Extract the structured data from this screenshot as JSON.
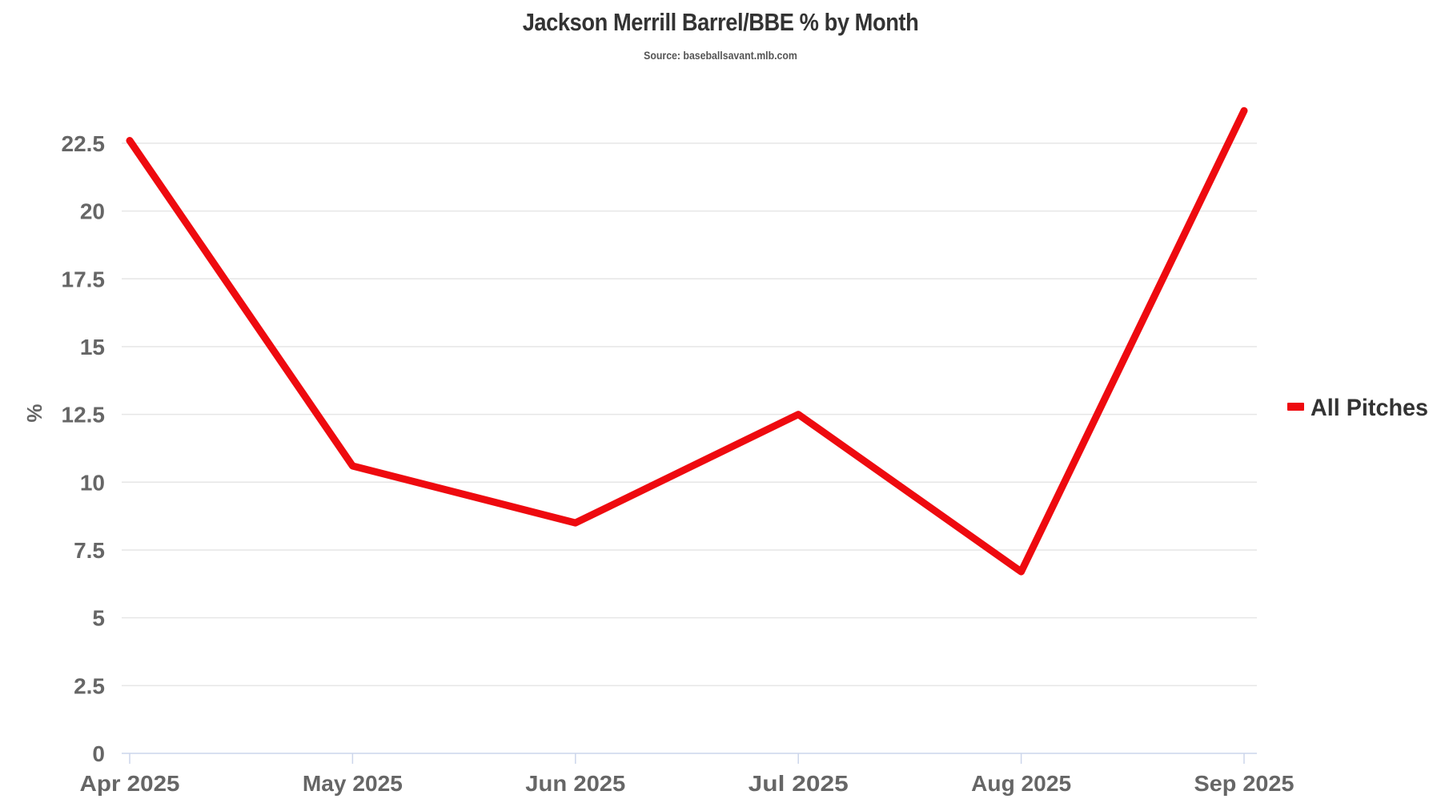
{
  "header": {
    "title": "Jackson Merrill Barrel/BBE % by Month",
    "subtitle": "Source: baseballsavant.mlb.com"
  },
  "colors": {
    "series": "#EE0A0F",
    "gridline": "#E6E6E6",
    "axis": "#CCD6EB",
    "tick_text": "#666666",
    "title_text": "#333333"
  },
  "chart_data": {
    "type": "line",
    "title": "Jackson Merrill Barrel/BBE % by Month",
    "subtitle": "Source: baseballsavant.mlb.com",
    "xlabel": "",
    "ylabel": "%",
    "categories": [
      "Apr 2025",
      "May 2025",
      "Jun 2025",
      "Jul 2025",
      "Aug 2025",
      "Sep 2025"
    ],
    "series": [
      {
        "name": "All Pitches",
        "color": "#EE0A0F",
        "values": [
          22.6,
          10.6,
          8.5,
          12.5,
          6.7,
          23.7
        ]
      }
    ],
    "ylim": [
      0,
      23.7
    ],
    "yticks": [
      "0",
      "2.5",
      "5",
      "7.5",
      "10",
      "12.5",
      "15",
      "17.5",
      "20",
      "22.5"
    ],
    "grid": true,
    "legend_position": "right"
  }
}
